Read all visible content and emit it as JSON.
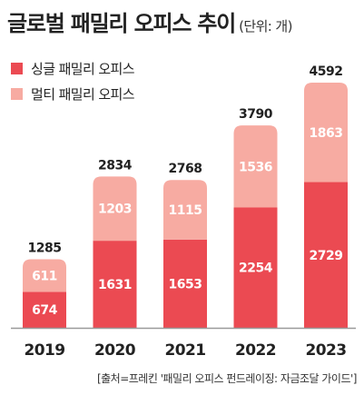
{
  "header": {
    "title": "글로벌 패밀리 오피스 추이",
    "unit": "(단위: 개)"
  },
  "source": "[출처=프레킨 '패밀리 오피스 펀드레이징: 자금조달 가이드']",
  "colors": {
    "single": "#eb4a52",
    "multi": "#f7aba2",
    "text": "#222222",
    "axis": "#9a9a9a"
  },
  "chart_data": {
    "type": "bar",
    "stacked": true,
    "title": "글로벌 패밀리 오피스 추이",
    "categories": [
      "2019",
      "2020",
      "2021",
      "2022",
      "2023"
    ],
    "series": [
      {
        "name": "싱글 패밀리 오피스",
        "values": [
          674,
          1631,
          1653,
          2254,
          2729
        ]
      },
      {
        "name": "멀티 패밀리 오피스",
        "values": [
          611,
          1203,
          1115,
          1536,
          1863
        ]
      }
    ],
    "totals": [
      1285,
      2834,
      2768,
      3790,
      4592
    ],
    "legend_position": "top-left",
    "grid": false
  }
}
